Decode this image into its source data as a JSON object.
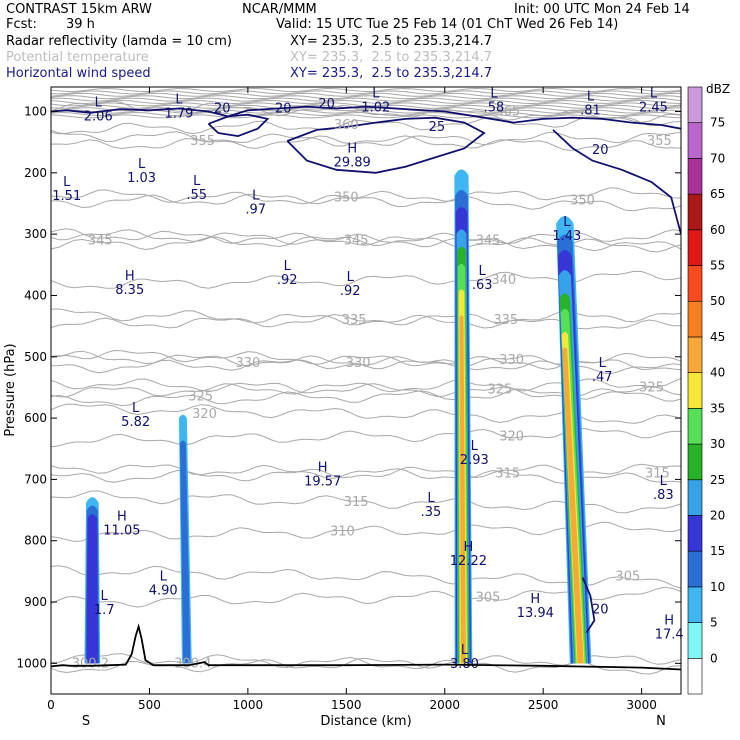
{
  "header": {
    "model": "CONTRAST 15km ARW",
    "org": "NCAR/MMM",
    "init": "Init: 00 UTC Mon 24 Feb 14",
    "fcst_label": "Fcst:",
    "fcst_value": "39 h",
    "valid": "Valid: 15 UTC Tue 25 Feb 14 (01 ChT Wed 26 Feb 14)",
    "fields": [
      {
        "name": "Radar reflectivity (lamda = 10 cm)",
        "xy": "XY= 235.3,  2.5 to 235.3,214.7"
      },
      {
        "name": "Potential temperature",
        "xy": "XY= 235.3,  2.5 to 235.3,214.7"
      },
      {
        "name": "Horizontal wind speed",
        "xy": "XY= 235.3,  2.5 to 235.3,214.7"
      }
    ]
  },
  "colors": {
    "wind": "#10106e",
    "theta": "#a8a8a8",
    "terrain": "#000000"
  },
  "chart_data": {
    "type": "cross-section",
    "xlabel": "Distance (km)",
    "ylabel": "Pressure (hPa)",
    "xlim": [
      0,
      3200
    ],
    "ylim": [
      1050,
      60
    ],
    "xticks": [
      0,
      500,
      1000,
      1500,
      2000,
      2500,
      3000
    ],
    "yticks": [
      100,
      200,
      300,
      400,
      500,
      600,
      700,
      800,
      900,
      1000
    ],
    "end_labels": {
      "left": "S",
      "right": "N"
    },
    "colorbar": {
      "unit": "dBZ",
      "levels": [
        0,
        5,
        10,
        15,
        20,
        25,
        30,
        35,
        40,
        45,
        50,
        55,
        60,
        65,
        70,
        75
      ],
      "colors": [
        "#ffffff",
        "#7ff7f7",
        "#3fb6f2",
        "#2a6fd6",
        "#3636d6",
        "#36a3e8",
        "#27b227",
        "#57e057",
        "#f7e838",
        "#f7a838",
        "#f77f1f",
        "#f74a1f",
        "#e01818",
        "#aa1818",
        "#aa3399",
        "#bb66cc",
        "#cc99dd"
      ]
    },
    "terrain": [
      [
        0,
        1005
      ],
      [
        60,
        1003
      ],
      [
        100,
        1004
      ],
      [
        200,
        1004
      ],
      [
        300,
        1003
      ],
      [
        380,
        1002
      ],
      [
        410,
        985
      ],
      [
        430,
        955
      ],
      [
        445,
        940
      ],
      [
        460,
        960
      ],
      [
        480,
        995
      ],
      [
        520,
        1003
      ],
      [
        700,
        1003
      ],
      [
        780,
        998
      ],
      [
        800,
        1003
      ],
      [
        1000,
        1003
      ],
      [
        1500,
        1003
      ],
      [
        2000,
        1002
      ],
      [
        2500,
        1004
      ],
      [
        3000,
        1007
      ],
      [
        3200,
        1010
      ]
    ],
    "theta_contours": [
      {
        "label": "300.2",
        "p": 1000,
        "lx": 200
      },
      {
        "label": "300.4",
        "p": 1000,
        "lx": 720
      },
      {
        "label": "305",
        "p": 893,
        "lx": 2220
      },
      {
        "label": "305",
        "p": 858,
        "lx": 2930
      },
      {
        "label": "310",
        "p": 785,
        "lx": 1480
      },
      {
        "label": "315",
        "p": 737,
        "lx": 1550
      },
      {
        "label": "315",
        "p": 690,
        "lx": 2320
      },
      {
        "label": "315",
        "p": 690,
        "lx": 3080
      },
      {
        "label": "320",
        "p": 630,
        "lx": 2340
      },
      {
        "label": "320",
        "p": 593,
        "lx": 780
      },
      {
        "label": "325",
        "p": 565,
        "lx": 760
      },
      {
        "label": "325",
        "p": 553,
        "lx": 2280
      },
      {
        "label": "325",
        "p": 550,
        "lx": 3050
      },
      {
        "label": "330",
        "p": 510,
        "lx": 1000
      },
      {
        "label": "330",
        "p": 510,
        "lx": 1560
      },
      {
        "label": "330",
        "p": 505,
        "lx": 2340
      },
      {
        "label": "335",
        "p": 440,
        "lx": 1540
      },
      {
        "label": "335",
        "p": 440,
        "lx": 2310
      },
      {
        "label": "340",
        "p": 375,
        "lx": 2300
      },
      {
        "label": "345",
        "p": 310,
        "lx": 250
      },
      {
        "label": "345",
        "p": 310,
        "lx": 1550
      },
      {
        "label": "345",
        "p": 310,
        "lx": 2220
      },
      {
        "label": "350",
        "p": 240,
        "lx": 1500
      },
      {
        "label": "350",
        "p": 245,
        "lx": 2700
      },
      {
        "label": "355",
        "p": 148,
        "lx": 770
      },
      {
        "label": "355",
        "p": 148,
        "lx": 3090
      },
      {
        "label": "360",
        "p": 122,
        "lx": 1500
      },
      {
        "label": "365",
        "p": 100,
        "lx": 2320
      }
    ],
    "wind_labels": [
      {
        "text": "20",
        "x": 870,
        "p": 95
      },
      {
        "text": "20",
        "x": 1180,
        "p": 95
      },
      {
        "text": "20",
        "x": 1400,
        "p": 88
      },
      {
        "text": "25",
        "x": 1960,
        "p": 125
      },
      {
        "text": "20",
        "x": 2790,
        "p": 163
      },
      {
        "text": "20",
        "x": 2790,
        "p": 912
      }
    ],
    "extrema": [
      {
        "type": "L",
        "value": "2.06",
        "x": 240,
        "p": 95
      },
      {
        "type": "L",
        "value": "1.79",
        "x": 650,
        "p": 90
      },
      {
        "type": "L",
        "value": "1.02",
        "x": 1650,
        "p": 80
      },
      {
        "type": "L",
        "value": ".58",
        "x": 2250,
        "p": 80
      },
      {
        "type": "L",
        "value": ".81",
        "x": 2740,
        "p": 85
      },
      {
        "type": "L",
        "value": "2.45",
        "x": 3060,
        "p": 80
      },
      {
        "type": "H",
        "value": "29.89",
        "x": 1530,
        "p": 170
      },
      {
        "type": "L",
        "value": "1.03",
        "x": 460,
        "p": 195
      },
      {
        "type": "L",
        "value": "1.51",
        "x": 80,
        "p": 225
      },
      {
        "type": "L",
        "value": ".55",
        "x": 740,
        "p": 223
      },
      {
        "type": "L",
        "value": ".97",
        "x": 1040,
        "p": 247
      },
      {
        "type": "L",
        "value": "1.43",
        "x": 2620,
        "p": 290
      },
      {
        "type": "H",
        "value": "8.35",
        "x": 400,
        "p": 378
      },
      {
        "type": "L",
        "value": ".92",
        "x": 1200,
        "p": 362
      },
      {
        "type": "L",
        "value": ".92",
        "x": 1520,
        "p": 380
      },
      {
        "type": "L",
        "value": ".63",
        "x": 2190,
        "p": 370
      },
      {
        "type": "L",
        "value": ".47",
        "x": 2800,
        "p": 520
      },
      {
        "type": "L",
        "value": "5.82",
        "x": 430,
        "p": 593
      },
      {
        "type": "H",
        "value": "19.57",
        "x": 1380,
        "p": 690
      },
      {
        "type": "L",
        "value": "2.93",
        "x": 2150,
        "p": 655
      },
      {
        "type": "L",
        "value": ".35",
        "x": 1930,
        "p": 740
      },
      {
        "type": "L",
        "value": ".83",
        "x": 3110,
        "p": 712
      },
      {
        "type": "H",
        "value": "11.05",
        "x": 360,
        "p": 770
      },
      {
        "type": "H",
        "value": "12.22",
        "x": 2120,
        "p": 820
      },
      {
        "type": "L",
        "value": "4.90",
        "x": 570,
        "p": 868
      },
      {
        "type": "L",
        "value": "1.7",
        "x": 270,
        "p": 900
      },
      {
        "type": "H",
        "value": "13.94",
        "x": 2460,
        "p": 905
      },
      {
        "type": "H",
        "value": "17.4",
        "x": 3140,
        "p": 940
      },
      {
        "type": "L",
        "value": "3.80",
        "x": 2100,
        "p": 988
      }
    ],
    "reflectivity_cells": [
      {
        "x": 210,
        "w": 80,
        "ptop": 725,
        "pbot": 1000,
        "lean": 0,
        "dbz": [
          [
            0,
            5
          ],
          [
            0.15,
            10
          ],
          [
            0.3,
            15
          ]
        ]
      },
      {
        "x": 690,
        "w": 50,
        "ptop": 592,
        "pbot": 1000,
        "lean": -20,
        "dbz": [
          [
            0,
            5
          ],
          [
            0.3,
            10
          ]
        ]
      },
      {
        "x": 2095,
        "w": 90,
        "ptop": 190,
        "pbot": 1000,
        "lean": -10,
        "dbz": [
          [
            0,
            5
          ],
          [
            0.12,
            10
          ],
          [
            0.22,
            15
          ],
          [
            0.35,
            20
          ],
          [
            0.45,
            25
          ],
          [
            0.55,
            30
          ],
          [
            0.7,
            35
          ],
          [
            0.85,
            40
          ]
        ]
      },
      {
        "x": 2690,
        "w": 110,
        "ptop": 265,
        "pbot": 1000,
        "lean": -80,
        "dbz": [
          [
            0,
            5
          ],
          [
            0.12,
            10
          ],
          [
            0.22,
            15
          ],
          [
            0.35,
            20
          ],
          [
            0.5,
            25
          ],
          [
            0.6,
            30
          ],
          [
            0.75,
            35
          ],
          [
            0.85,
            40
          ]
        ]
      }
    ]
  }
}
